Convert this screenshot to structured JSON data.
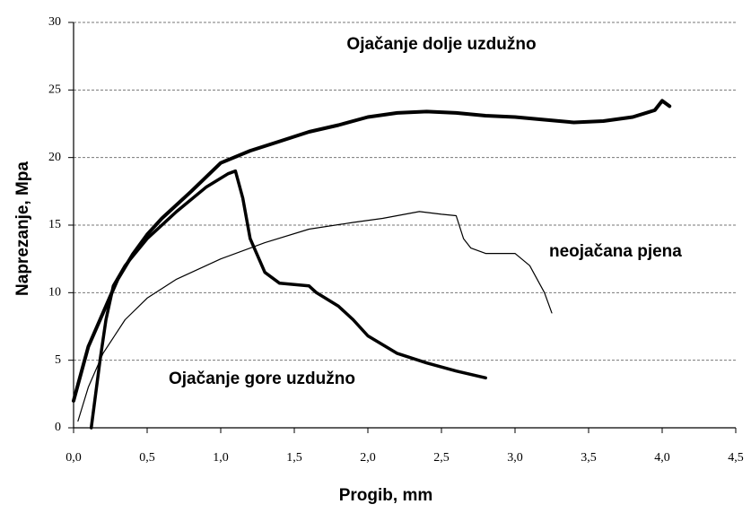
{
  "chart_data": {
    "type": "line",
    "xlabel": "Progib, mm",
    "ylabel": "Naprezanje, Mpa",
    "xlim": [
      0,
      4.5
    ],
    "ylim": [
      0,
      30
    ],
    "xticks": [
      {
        "value": 0,
        "label": "0,0"
      },
      {
        "value": 0.5,
        "label": "0,5"
      },
      {
        "value": 1,
        "label": "1,0"
      },
      {
        "value": 1.5,
        "label": "1,5"
      },
      {
        "value": 2,
        "label": "2,0"
      },
      {
        "value": 2.5,
        "label": "2,5"
      },
      {
        "value": 3,
        "label": "3,0"
      },
      {
        "value": 3.5,
        "label": "3,5"
      },
      {
        "value": 4,
        "label": "4,0"
      },
      {
        "value": 4.5,
        "label": "4,5"
      }
    ],
    "yticks": [
      0,
      5,
      10,
      15,
      20,
      25,
      30
    ],
    "grid": true,
    "series": [
      {
        "name": "Ojačanje dolje uzdužno",
        "color": "#000000",
        "line_width": 4,
        "x": [
          0,
          0.05,
          0.1,
          0.2,
          0.3,
          0.4,
          0.5,
          0.6,
          0.8,
          1.0,
          1.2,
          1.4,
          1.6,
          1.8,
          2.0,
          2.2,
          2.4,
          2.6,
          2.8,
          3.0,
          3.2,
          3.4,
          3.6,
          3.8,
          3.95,
          4.0,
          4.05
        ],
        "values": [
          2,
          4,
          6,
          8.5,
          11,
          12.8,
          14.3,
          15.5,
          17.5,
          19.6,
          20.5,
          21.2,
          21.9,
          22.4,
          23,
          23.3,
          23.4,
          23.3,
          23.1,
          23,
          22.8,
          22.6,
          22.7,
          23,
          23.5,
          24.2,
          23.8
        ]
      },
      {
        "name": "Ojačanje gore uzdužno",
        "color": "#000000",
        "line_width": 3.5,
        "x": [
          0.12,
          0.18,
          0.22,
          0.27,
          0.35,
          0.5,
          0.7,
          0.9,
          1.05,
          1.1,
          1.15,
          1.2,
          1.3,
          1.4,
          1.6,
          1.65,
          1.8,
          1.9,
          2.0,
          2.2,
          2.4,
          2.6,
          2.8
        ],
        "values": [
          0,
          5,
          8,
          10.5,
          12,
          14,
          16,
          17.8,
          18.8,
          19,
          17,
          14,
          11.5,
          10.7,
          10.5,
          10,
          9,
          8,
          6.8,
          5.5,
          4.8,
          4.2,
          3.7
        ]
      },
      {
        "name": "neojačana pjena",
        "color": "#000000",
        "line_width": 1.2,
        "x": [
          0.03,
          0.1,
          0.2,
          0.35,
          0.5,
          0.7,
          1.0,
          1.3,
          1.6,
          1.9,
          2.1,
          2.35,
          2.5,
          2.6,
          2.65,
          2.7,
          2.8,
          3.0,
          3.1,
          3.2,
          3.25
        ],
        "values": [
          0.5,
          3,
          5.5,
          8,
          9.6,
          11,
          12.5,
          13.7,
          14.7,
          15.2,
          15.5,
          16,
          15.8,
          15.7,
          14,
          13.3,
          12.9,
          12.9,
          12,
          10,
          8.5
        ]
      }
    ]
  }
}
